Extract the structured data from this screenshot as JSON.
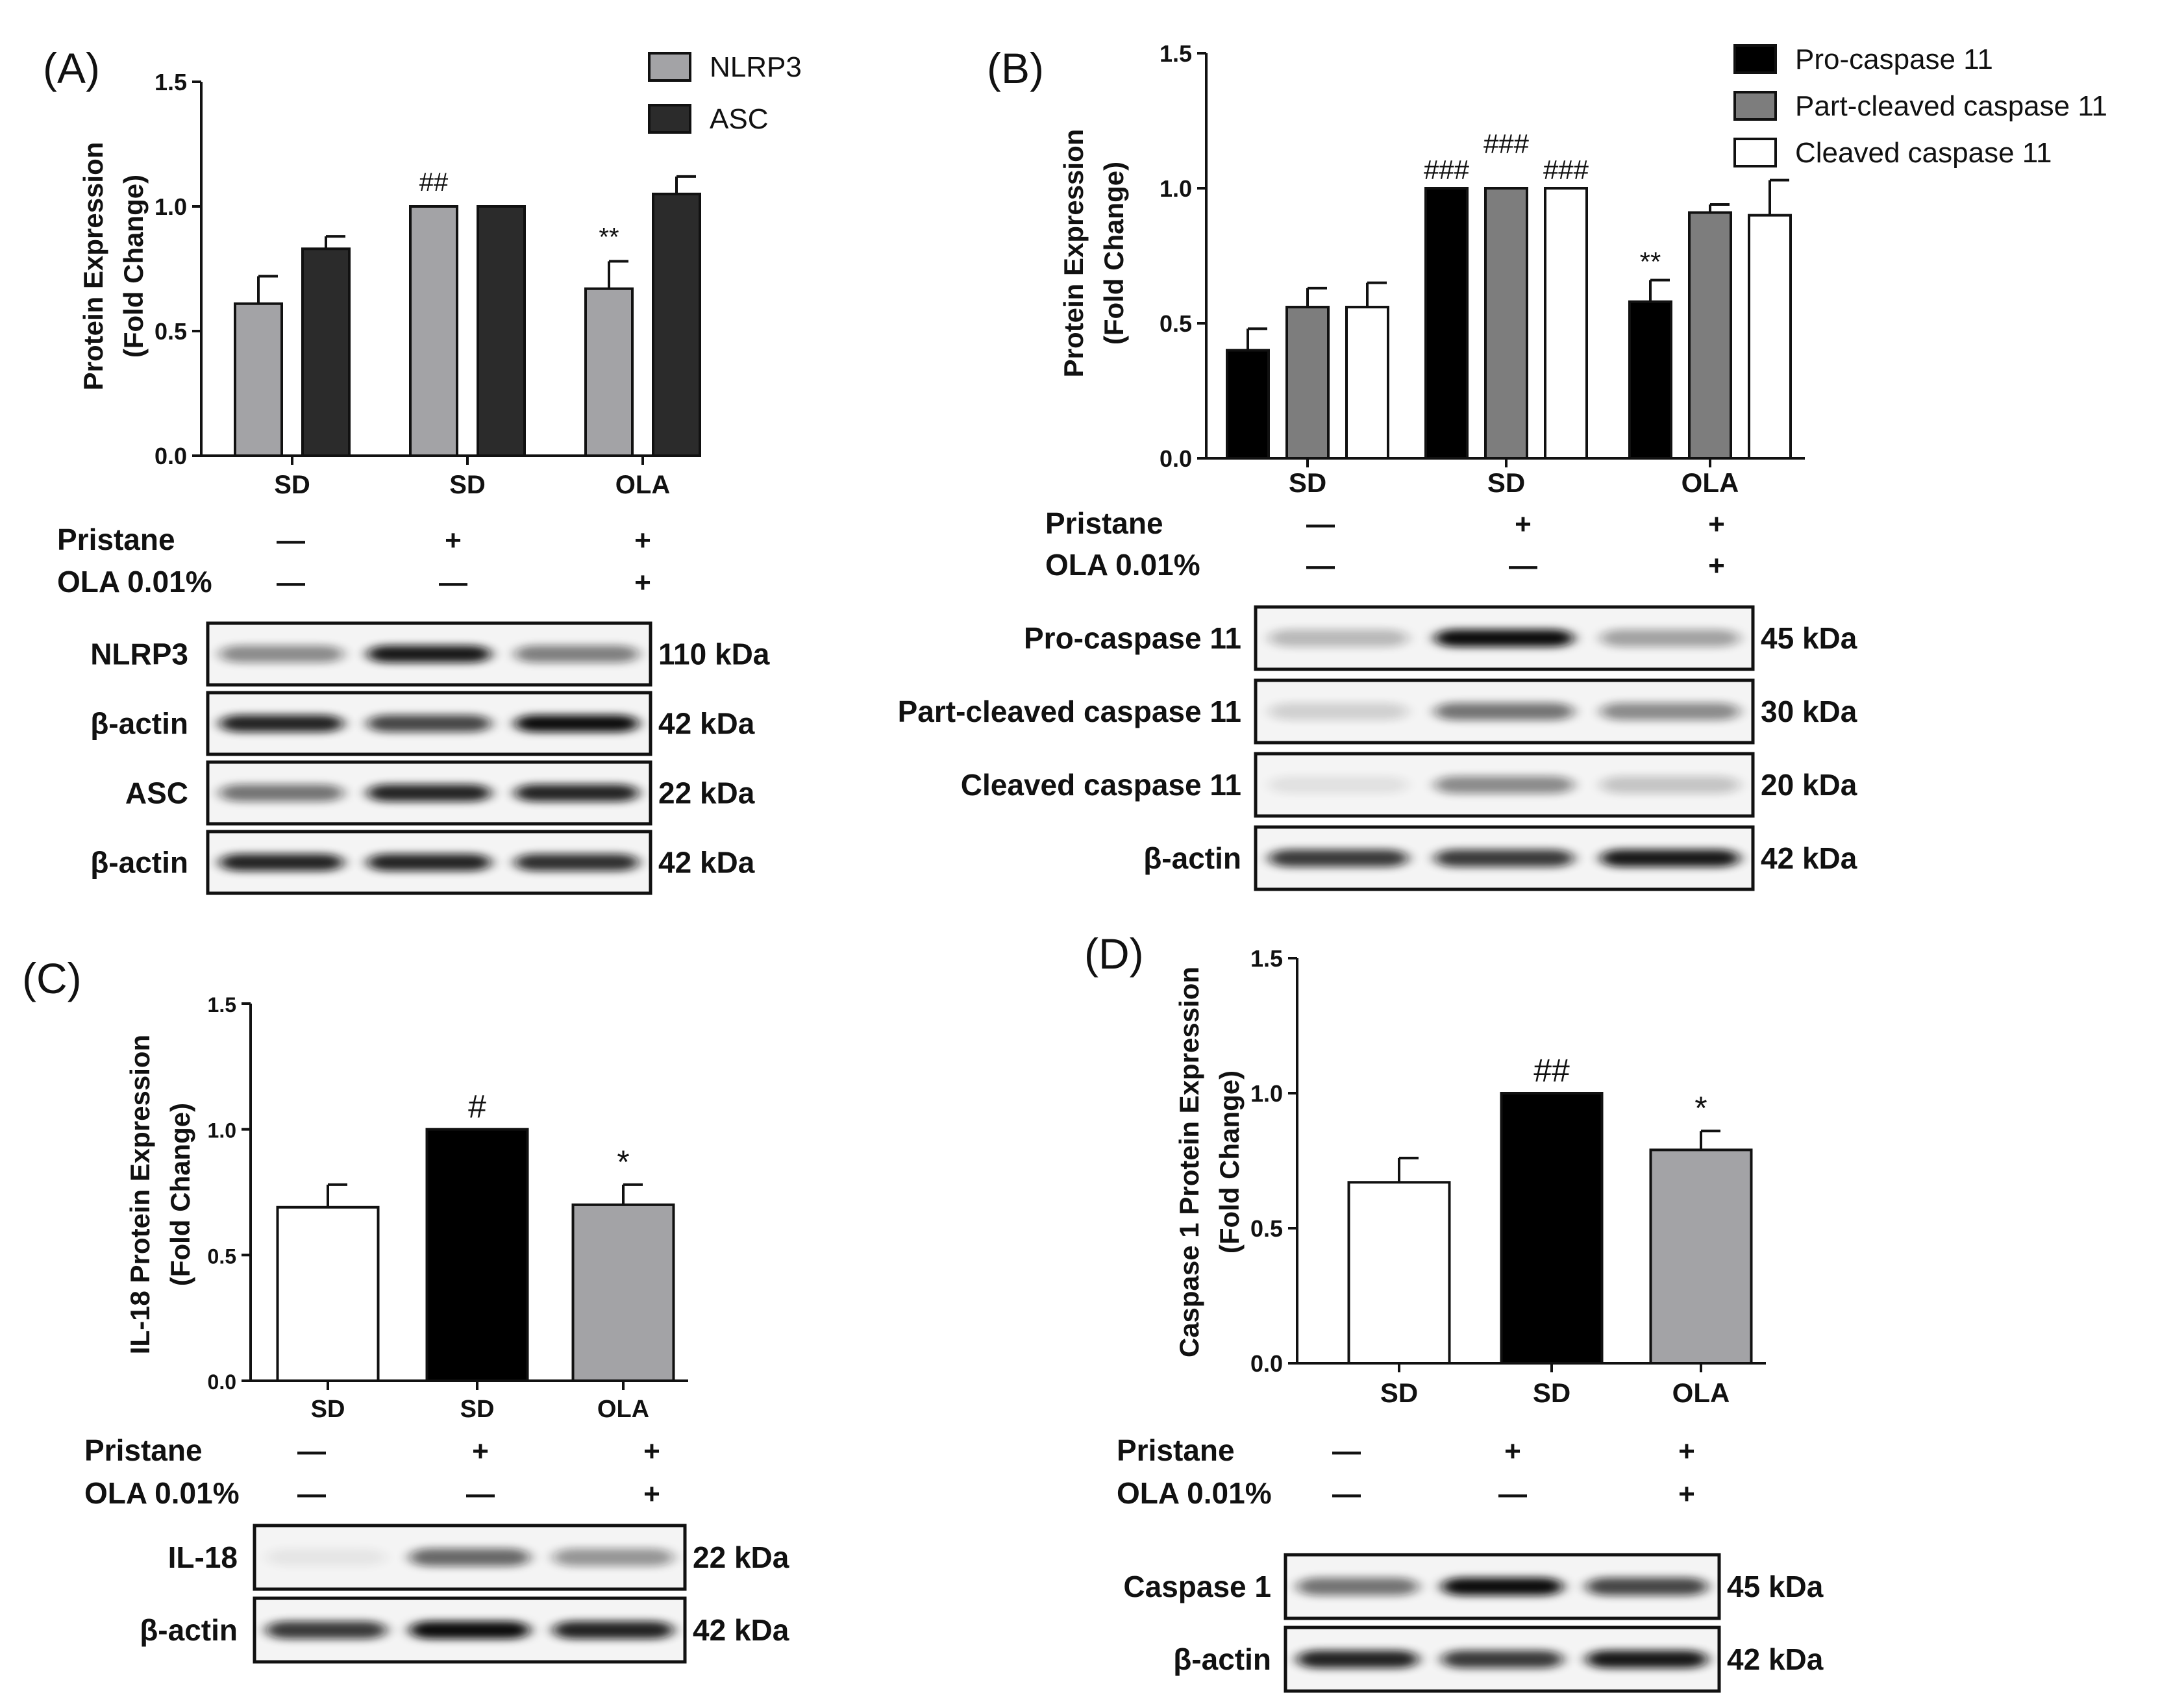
{
  "colors": {
    "light_gray": "#a3a3a6",
    "dark_gray": "#2b2b2b",
    "black": "#000000",
    "mid_gray": "#7d7d7d",
    "white": "#ffffff"
  },
  "treatment_labels": {
    "pristane": "Pristane",
    "ola": "OLA  0.01%"
  },
  "chart_data": [
    {
      "panel": "(A)",
      "type": "bar",
      "ylabel": "Protein Expression\n(Fold Change)",
      "ylim": [
        0,
        1.5
      ],
      "yticks": [
        "0.0",
        "0.5",
        "1.0",
        "1.5"
      ],
      "categories": [
        "SD",
        "SD",
        "OLA"
      ],
      "pristane": [
        "—",
        "+",
        "+"
      ],
      "ola": [
        "—",
        "—",
        "+"
      ],
      "legend": "top-right",
      "series": [
        {
          "name": "NLRP3",
          "color": "#a3a3a6",
          "values": [
            0.61,
            1.0,
            0.67
          ],
          "errors": [
            0.11,
            0,
            0.11
          ],
          "annotations": [
            "",
            "##",
            "**"
          ]
        },
        {
          "name": "ASC",
          "color": "#2b2b2b",
          "values": [
            0.83,
            1.0,
            1.05
          ],
          "errors": [
            0.05,
            0,
            0.07
          ],
          "annotations": [
            "",
            "",
            ""
          ]
        }
      ],
      "blots": [
        {
          "label": "NLRP3",
          "kda": "110 kDa"
        },
        {
          "label": "β-actin",
          "kda": "42 kDa"
        },
        {
          "label": "ASC",
          "kda": "22 kDa"
        },
        {
          "label": "β-actin",
          "kda": "42 kDa"
        }
      ]
    },
    {
      "panel": "(B)",
      "type": "bar",
      "ylabel": "Protein Expression\n(Fold Change)",
      "ylim": [
        0,
        1.5
      ],
      "yticks": [
        "0.0",
        "0.5",
        "1.0",
        "1.5"
      ],
      "categories": [
        "SD",
        "SD",
        "OLA"
      ],
      "pristane": [
        "—",
        "+",
        "+"
      ],
      "ola": [
        "—",
        "—",
        "+"
      ],
      "legend": "top-right",
      "series": [
        {
          "name": "Pro-caspase 11",
          "color": "#000000",
          "values": [
            0.4,
            1.0,
            0.58
          ],
          "errors": [
            0.08,
            0,
            0.08
          ],
          "annotations": [
            "",
            "###",
            "**"
          ]
        },
        {
          "name": "Part-cleaved caspase 11",
          "color": "#7d7d7d",
          "values": [
            0.56,
            1.0,
            0.91
          ],
          "errors": [
            0.07,
            0,
            0.03
          ],
          "annotations": [
            "",
            "###",
            ""
          ]
        },
        {
          "name": "Cleaved caspase 11",
          "color": "#ffffff",
          "values": [
            0.56,
            1.0,
            0.9
          ],
          "errors": [
            0.09,
            0,
            0.13
          ],
          "annotations": [
            "",
            "###",
            ""
          ]
        }
      ],
      "blots": [
        {
          "label": "Pro-caspase 11",
          "kda": "45 kDa"
        },
        {
          "label": "Part-cleaved caspase 11",
          "kda": "30 kDa"
        },
        {
          "label": "Cleaved caspase 11",
          "kda": "20 kDa"
        },
        {
          "label": "β-actin",
          "kda": "42 kDa"
        }
      ]
    },
    {
      "panel": "(C)",
      "type": "bar",
      "ylabel": "IL-18 Protein Expression\n(Fold Change)",
      "ylim": [
        0,
        1.5
      ],
      "yticks": [
        "0.0",
        "0.5",
        "1.0",
        "1.5"
      ],
      "categories": [
        "SD",
        "SD",
        "OLA"
      ],
      "pristane": [
        "—",
        "+",
        "+"
      ],
      "ola": [
        "—",
        "—",
        "+"
      ],
      "colors": [
        "#ffffff",
        "#000000",
        "#a3a3a6"
      ],
      "values": [
        0.69,
        1.0,
        0.7
      ],
      "errors": [
        0.09,
        0,
        0.08
      ],
      "annotations": [
        "",
        "#",
        "*"
      ],
      "blots": [
        {
          "label": "IL-18",
          "kda": "22 kDa"
        },
        {
          "label": "β-actin",
          "kda": "42 kDa"
        }
      ]
    },
    {
      "panel": "(D)",
      "type": "bar",
      "ylabel": "Caspase 1 Protein Expression\n(Fold Change)",
      "ylim": [
        0,
        1.5
      ],
      "yticks": [
        "0.0",
        "0.5",
        "1.0",
        "1.5"
      ],
      "categories": [
        "SD",
        "SD",
        "OLA"
      ],
      "pristane": [
        "—",
        "+",
        "+"
      ],
      "ola": [
        "—",
        "—",
        "+"
      ],
      "colors": [
        "#ffffff",
        "#000000",
        "#a3a3a6"
      ],
      "values": [
        0.67,
        1.0,
        0.79
      ],
      "errors": [
        0.09,
        0,
        0.07
      ],
      "annotations": [
        "",
        "##",
        "*"
      ],
      "blots": [
        {
          "label": "Caspase 1",
          "kda": "45 kDa"
        },
        {
          "label": "β-actin",
          "kda": "42 kDa"
        }
      ]
    }
  ]
}
